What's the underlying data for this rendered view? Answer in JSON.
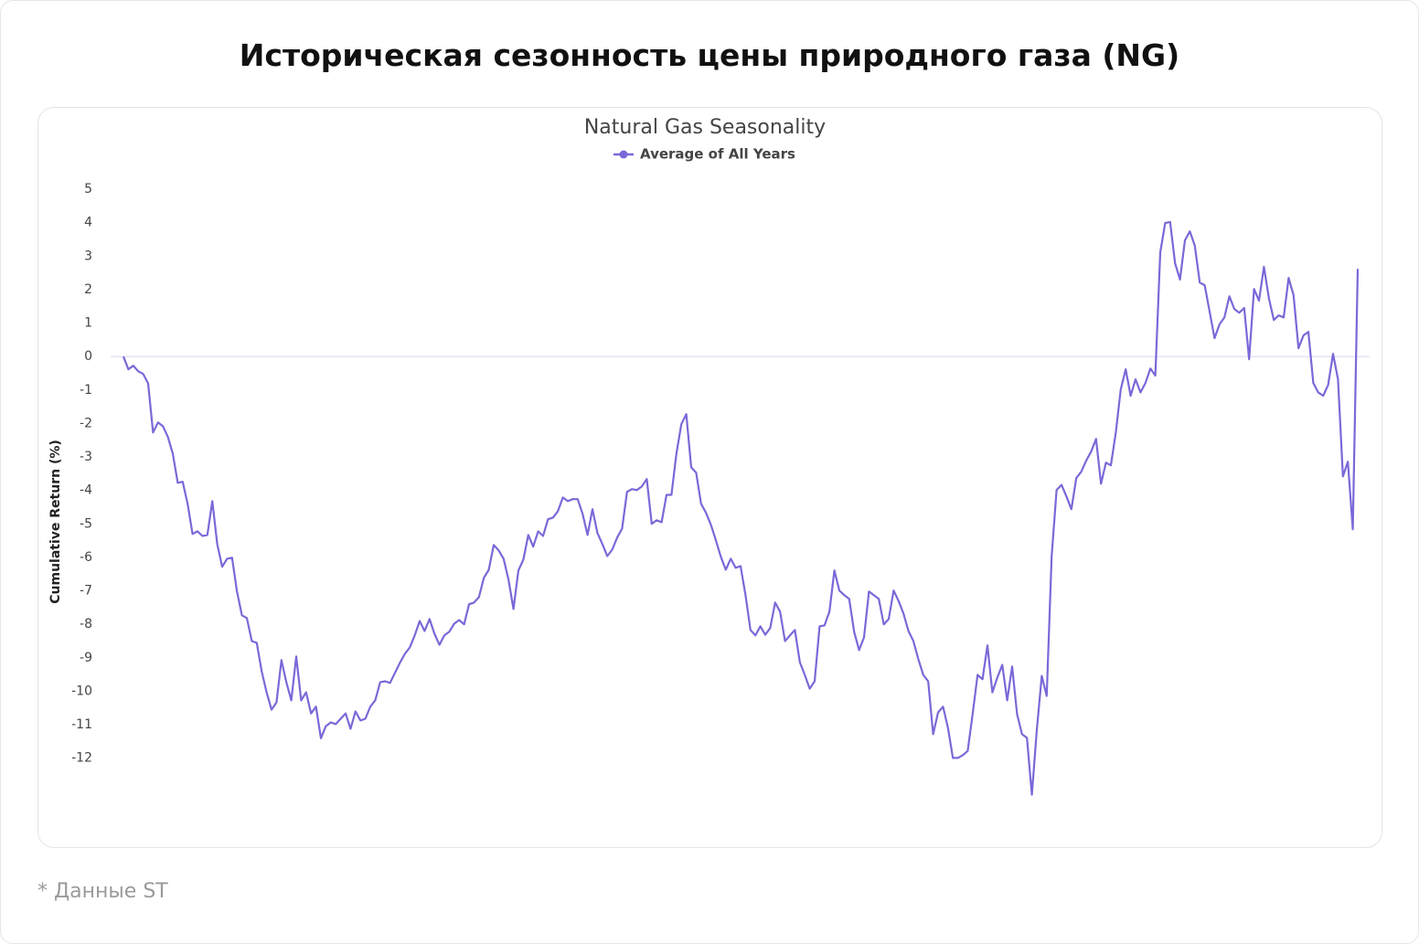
{
  "header": {
    "title": "Историческая сезонность цены природного газа (NG)"
  },
  "chart_data": {
    "type": "line",
    "title": "Natural Gas Seasonality",
    "ylabel": "Cumulative Return (%)",
    "ylim": [
      -14.3,
      5
    ],
    "yticks": [
      5,
      4,
      3,
      2,
      1,
      0,
      -1,
      -2,
      -3,
      -4,
      -5,
      -6,
      -7,
      -8,
      -9,
      -10,
      -11,
      -12
    ],
    "zero_line": true,
    "legend": "top",
    "series": [
      {
        "name": "Average of All Years",
        "color": "#7b68d8",
        "values": [
          0,
          -0.38,
          -0.27,
          -0.44,
          -0.52,
          -0.8,
          -2.27,
          -1.97,
          -2.08,
          -2.4,
          -2.9,
          -3.77,
          -3.74,
          -4.4,
          -5.3,
          -5.22,
          -5.36,
          -5.33,
          -4.32,
          -5.6,
          -6.28,
          -6.04,
          -6.01,
          -7.02,
          -7.73,
          -7.81,
          -8.5,
          -8.55,
          -9.4,
          -10.03,
          -10.55,
          -10.33,
          -9.07,
          -9.73,
          -10.27,
          -8.96,
          -10.27,
          -10.03,
          -10.66,
          -10.46,
          -11.4,
          -11.04,
          -10.93,
          -10.98,
          -10.82,
          -10.66,
          -11.12,
          -10.6,
          -10.87,
          -10.82,
          -10.46,
          -10.27,
          -9.73,
          -9.7,
          -9.75,
          -9.45,
          -9.15,
          -8.88,
          -8.69,
          -8.33,
          -7.9,
          -8.2,
          -7.84,
          -8.28,
          -8.61,
          -8.33,
          -8.22,
          -7.98,
          -7.87,
          -8.0,
          -7.4,
          -7.35,
          -7.19,
          -6.61,
          -6.37,
          -5.63,
          -5.79,
          -6.04,
          -6.67,
          -7.54,
          -6.39,
          -6.07,
          -5.33,
          -5.68,
          -5.22,
          -5.36,
          -4.86,
          -4.81,
          -4.62,
          -4.21,
          -4.32,
          -4.26,
          -4.26,
          -4.7,
          -5.33,
          -4.56,
          -5.27,
          -5.6,
          -5.96,
          -5.77,
          -5.41,
          -5.14,
          -4.04,
          -3.96,
          -3.99,
          -3.88,
          -3.66,
          -5.0,
          -4.89,
          -4.95,
          -4.13,
          -4.13,
          -2.9,
          -2.02,
          -1.72,
          -3.31,
          -3.47,
          -4.4,
          -4.67,
          -5.03,
          -5.49,
          -5.98,
          -6.37,
          -6.04,
          -6.31,
          -6.26,
          -7.13,
          -8.17,
          -8.33,
          -8.06,
          -8.31,
          -8.11,
          -7.35,
          -7.62,
          -8.5,
          -8.33,
          -8.17,
          -9.13,
          -9.51,
          -9.92,
          -9.7,
          -8.06,
          -8.03,
          -7.62,
          -6.39,
          -6.99,
          -7.13,
          -7.24,
          -8.22,
          -8.77,
          -8.39,
          -7.02,
          -7.13,
          -7.24,
          -8.0,
          -7.84,
          -6.99,
          -7.3,
          -7.68,
          -8.2,
          -8.5,
          -9.04,
          -9.51,
          -9.7,
          -11.28,
          -10.63,
          -10.46,
          -11.09,
          -11.99,
          -11.99,
          -11.91,
          -11.78,
          -10.68,
          -9.51,
          -9.64,
          -8.63,
          -10.03,
          -9.59,
          -9.21,
          -10.27,
          -9.26,
          -10.68,
          -11.28,
          -11.39,
          -13.09,
          -11.15,
          -9.54,
          -10.14,
          -5.98,
          -3.99,
          -3.83,
          -4.18,
          -4.56,
          -3.63,
          -3.44,
          -3.11,
          -2.84,
          -2.46,
          -3.8,
          -3.17,
          -3.25,
          -2.27,
          -0.98,
          -0.38,
          -1.17,
          -0.68,
          -1.07,
          -0.79,
          -0.36,
          -0.57,
          3.11,
          3.99,
          4.02,
          2.79,
          2.3,
          3.47,
          3.74,
          3.31,
          2.21,
          2.13,
          1.34,
          0.55,
          0.96,
          1.17,
          1.8,
          1.42,
          1.31,
          1.45,
          -0.08,
          2.02,
          1.67,
          2.68,
          1.75,
          1.09,
          1.23,
          1.17,
          2.35,
          1.83,
          0.25,
          0.63,
          0.74,
          -0.79,
          -1.07,
          -1.17,
          -0.85,
          0.08,
          -0.68,
          -3.58,
          -3.14,
          -5.16,
          2.62
        ]
      }
    ]
  },
  "footnote": "* Данные ST"
}
